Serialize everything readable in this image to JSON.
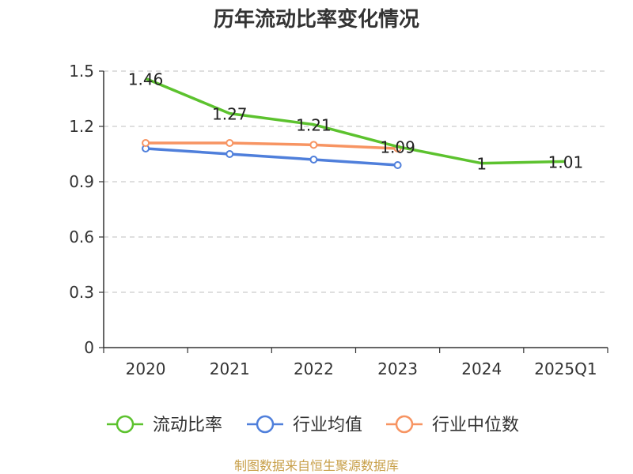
{
  "chart_data": {
    "type": "line",
    "title": "历年流动比率变化情况",
    "categories": [
      "2020",
      "2021",
      "2022",
      "2023",
      "2024",
      "2025Q1"
    ],
    "y_ticks": [
      "0",
      "0.3",
      "0.6",
      "0.9",
      "1.2",
      "1.5"
    ],
    "ylim": [
      0,
      1.5
    ],
    "grid": true,
    "legend_position": "bottom",
    "series": [
      {
        "name": "流动比率",
        "color": "#5cc22e",
        "values": [
          1.46,
          1.27,
          1.21,
          1.09,
          1.0,
          1.01
        ],
        "labels": [
          "1.46",
          "1.27",
          "1.21",
          "1.09",
          "1",
          "1.01"
        ],
        "marker": "none"
      },
      {
        "name": "行业均值",
        "color": "#4f7fdb",
        "values": [
          1.08,
          1.05,
          1.02,
          0.99,
          null,
          null
        ],
        "labels": [],
        "marker": "circle"
      },
      {
        "name": "行业中位数",
        "color": "#f79462",
        "values": [
          1.11,
          1.11,
          1.1,
          1.08,
          null,
          null
        ],
        "labels": [],
        "marker": "circle"
      }
    ],
    "source": "制图数据来自恒生聚源数据库"
  }
}
